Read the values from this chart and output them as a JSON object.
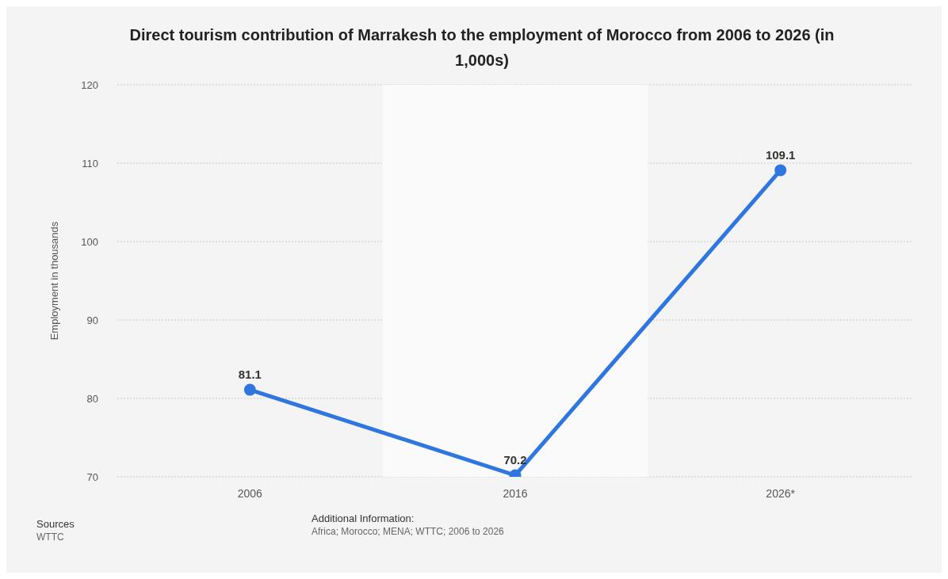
{
  "chart_data": {
    "type": "line",
    "title": "Direct tourism contribution of Marrakesh to the employment of Morocco from 2006 to 2026 (in 1,000s)",
    "ylabel": "Employment in thousands",
    "categories": [
      "2006",
      "2016",
      "2026*"
    ],
    "series": [
      {
        "color": "#2f76e0",
        "values": [
          81.1,
          70.2,
          109.1
        ]
      }
    ],
    "ylim": [
      70,
      120
    ],
    "yticks": [
      70,
      80,
      90,
      100,
      110,
      120
    ],
    "grid": "y",
    "marker": "circle",
    "line_style": "solid",
    "data_labels": true,
    "bands": [
      {
        "axis": "x",
        "from": "2016",
        "to": "2016",
        "color": "#fafafa"
      }
    ],
    "annotations": [
      "Sources",
      "WTTC",
      "Additional Information:",
      "Africa; Morocco; MENA; WTTC; 2006 to 2026"
    ]
  }
}
